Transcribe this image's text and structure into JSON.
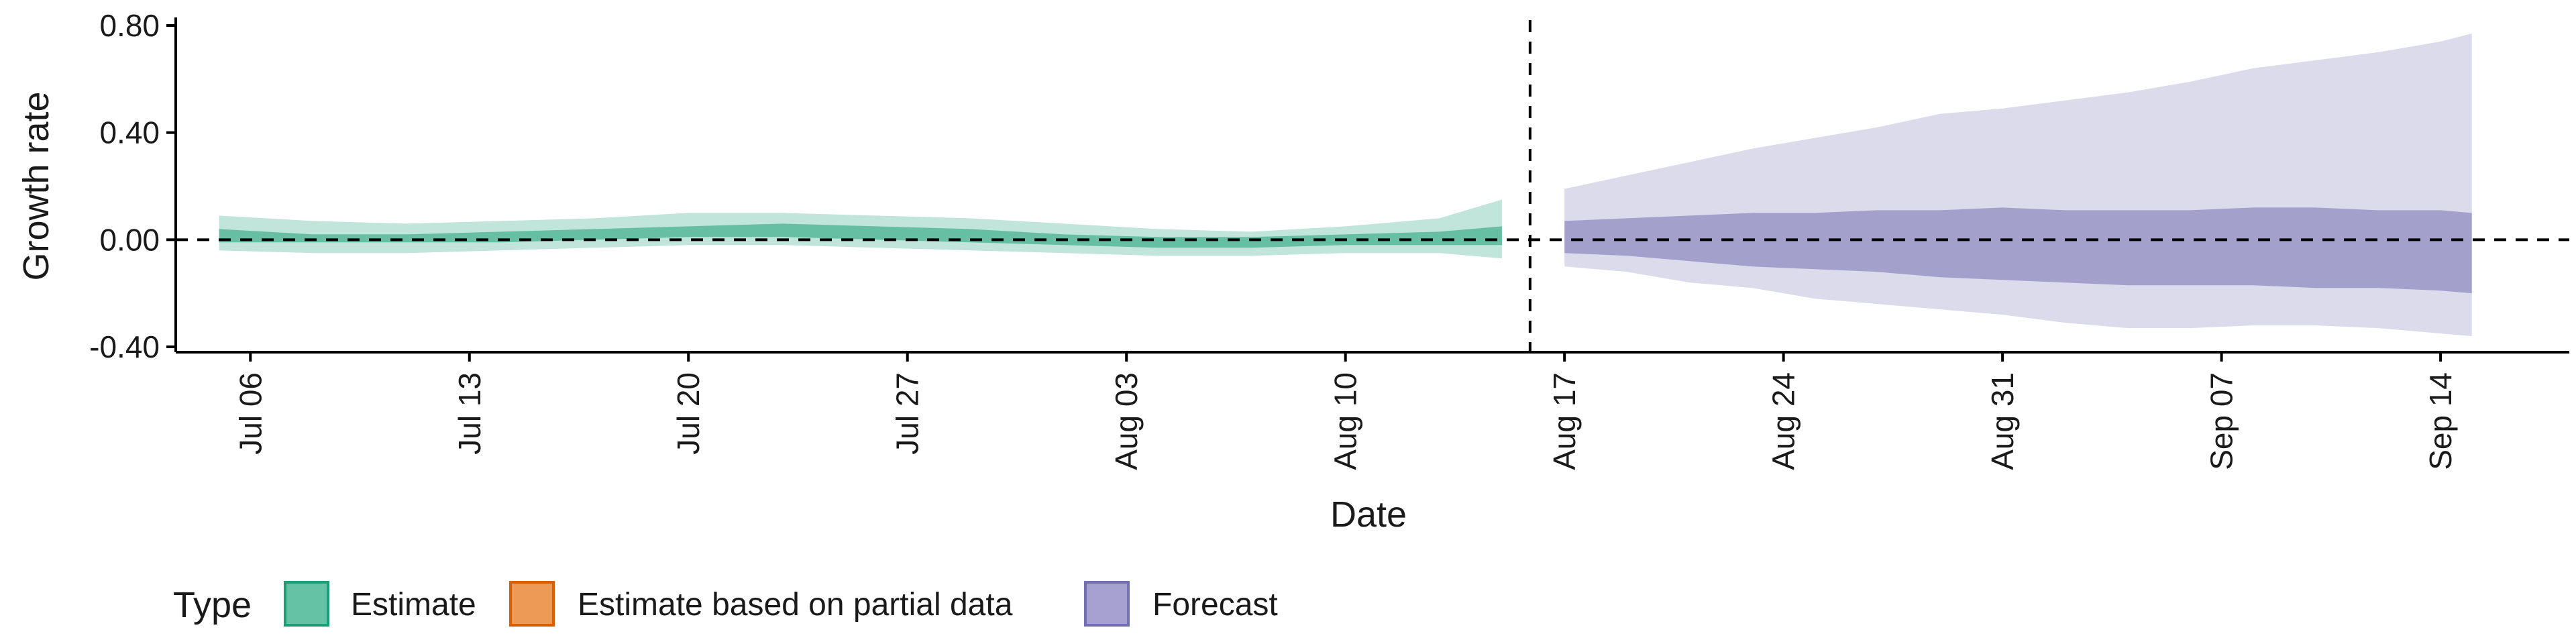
{
  "chart_data": {
    "type": "area",
    "title": "",
    "xlabel": "Date",
    "ylabel": "Growth rate",
    "ylim": [
      -0.42,
      0.82
    ],
    "y_ticks": [
      {
        "value": -0.4,
        "label": "-0.40"
      },
      {
        "value": 0.0,
        "label": "0.00"
      },
      {
        "value": 0.4,
        "label": "0.40"
      },
      {
        "value": 0.8,
        "label": "0.80"
      }
    ],
    "x_start": "Jul 04",
    "x_end": "Sep 17",
    "x_ticks": [
      {
        "day": 2,
        "label": "Jul 06"
      },
      {
        "day": 9,
        "label": "Jul 13"
      },
      {
        "day": 16,
        "label": "Jul 20"
      },
      {
        "day": 23,
        "label": "Jul 27"
      },
      {
        "day": 30,
        "label": "Aug 03"
      },
      {
        "day": 37,
        "label": "Aug 10"
      },
      {
        "day": 44,
        "label": "Aug 17"
      },
      {
        "day": 51,
        "label": "Aug 24"
      },
      {
        "day": 58,
        "label": "Aug 31"
      },
      {
        "day": 65,
        "label": "Sep 07"
      },
      {
        "day": 72,
        "label": "Sep 14"
      }
    ],
    "reference_lines": {
      "y": 0.0,
      "x_day": 42.9
    },
    "legend": {
      "position": "bottom-left",
      "title": "Type",
      "items": [
        {
          "label": "Estimate",
          "fill": "#66c2a5",
          "stroke": "#1b9e77"
        },
        {
          "label": "Estimate based on partial data",
          "fill": "#ed9a57",
          "stroke": "#d95f02"
        },
        {
          "label": "Forecast",
          "fill": "#a6a1d0",
          "stroke": "#7570b3"
        }
      ]
    },
    "series": [
      {
        "name": "Estimate",
        "color": "#1b9e77",
        "x_days": [
          1,
          4,
          7,
          10,
          13,
          16,
          19,
          22,
          25,
          28,
          31,
          34,
          37,
          40,
          42
        ],
        "outer_lower": [
          -0.04,
          -0.05,
          -0.05,
          -0.04,
          -0.03,
          -0.02,
          -0.02,
          -0.03,
          -0.04,
          -0.05,
          -0.06,
          -0.06,
          -0.05,
          -0.05,
          -0.07
        ],
        "outer_upper": [
          0.09,
          0.07,
          0.06,
          0.07,
          0.08,
          0.1,
          0.1,
          0.09,
          0.08,
          0.06,
          0.04,
          0.03,
          0.05,
          0.08,
          0.15
        ],
        "inner_lower": [
          -0.01,
          -0.01,
          -0.01,
          -0.01,
          0.0,
          0.01,
          0.01,
          0.0,
          -0.01,
          -0.02,
          -0.03,
          -0.03,
          -0.02,
          -0.02,
          -0.02
        ],
        "inner_upper": [
          0.04,
          0.02,
          0.02,
          0.03,
          0.04,
          0.05,
          0.06,
          0.05,
          0.04,
          0.02,
          0.01,
          0.01,
          0.02,
          0.03,
          0.05
        ]
      },
      {
        "name": "Forecast",
        "color": "#7570b3",
        "x_days": [
          44,
          46,
          48,
          50,
          52,
          54,
          56,
          58,
          60,
          62,
          64,
          66,
          68,
          70,
          72,
          73
        ],
        "outer_lower": [
          -0.1,
          -0.12,
          -0.16,
          -0.18,
          -0.22,
          -0.24,
          -0.26,
          -0.28,
          -0.31,
          -0.33,
          -0.33,
          -0.32,
          -0.32,
          -0.33,
          -0.35,
          -0.36
        ],
        "outer_upper": [
          0.19,
          0.24,
          0.29,
          0.34,
          0.38,
          0.42,
          0.47,
          0.49,
          0.52,
          0.55,
          0.59,
          0.64,
          0.67,
          0.7,
          0.74,
          0.77
        ],
        "inner_lower": [
          -0.05,
          -0.06,
          -0.08,
          -0.1,
          -0.11,
          -0.12,
          -0.14,
          -0.15,
          -0.16,
          -0.17,
          -0.17,
          -0.17,
          -0.18,
          -0.18,
          -0.19,
          -0.2
        ],
        "inner_upper": [
          0.07,
          0.08,
          0.09,
          0.1,
          0.1,
          0.11,
          0.11,
          0.12,
          0.11,
          0.11,
          0.11,
          0.12,
          0.12,
          0.11,
          0.11,
          0.1
        ]
      }
    ]
  }
}
